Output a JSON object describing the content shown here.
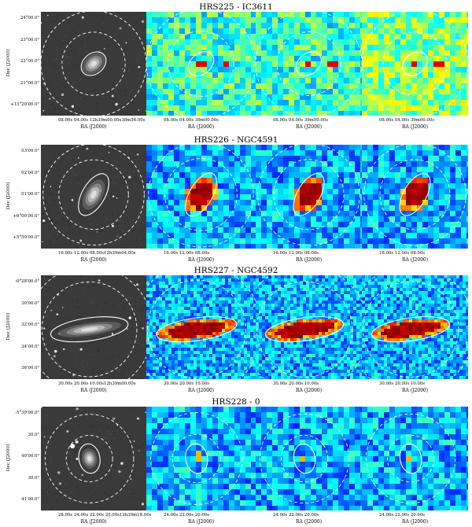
{
  "figure": {
    "rows": [
      {
        "title": "HRS225 - IC3611",
        "y_ticks": [
          "24°00.0\"",
          "23°00.0\"",
          "22°00.0\"",
          "21°00.0\"",
          "+13°20'00.0\""
        ],
        "y_label": "Dec (J2000)",
        "panels": [
          {
            "kind": "optical",
            "x_ticks": "08.00s  04.00s 12h39m00.00s38m56.00s",
            "x_label": "RA (J2000)"
          },
          {
            "kind": "map",
            "x_ticks": "08.00s  04.00s 39m00.00s",
            "x_label": "RA (J2000)"
          },
          {
            "kind": "map",
            "x_ticks": "08.00s  04.00s 39m00.00s",
            "x_label": "RA (J2000)"
          },
          {
            "kind": "map",
            "x_ticks": "08.00s  04.00s 39m00.00s",
            "x_label": "RA (J2000)"
          }
        ]
      },
      {
        "title": "HRS226 - NGC4591",
        "y_ticks": [
          "03'00.0\"",
          "02'00.0\"",
          "01'00.0\"",
          "+6°00'00.0\"",
          "+5°59'00.0\""
        ],
        "y_label": "Dec (J2000)",
        "panels": [
          {
            "kind": "optical",
            "x_ticks": "16.00s  12.00s  08.00s12h39m04.00s",
            "x_label": "RA (J2000)"
          },
          {
            "kind": "map",
            "x_ticks": "16.00s  12.00s  08.00s",
            "x_label": "RA (J2000)"
          },
          {
            "kind": "map",
            "x_ticks": "16.00s  12.00s  08.00s",
            "x_label": "RA (J2000)"
          },
          {
            "kind": "map",
            "x_ticks": "16.00s  12.00s  08.00s",
            "x_label": "RA (J2000)"
          }
        ]
      },
      {
        "title": "HRS227 - NGC4592",
        "y_ticks": [
          "-0°28'00.0\"",
          "30'00.0\"",
          "32'00.0\"",
          "34'00.0\"",
          "36'00.0\""
        ],
        "y_label": "Dec (J2000)",
        "panels": [
          {
            "kind": "optical",
            "x_ticks": "30.00s  20.00s  10.00s12h39m00.00s",
            "x_label": "RA (J2000)"
          },
          {
            "kind": "map",
            "x_ticks": "30.00s  20.00s  10.00s",
            "x_label": "RA (J2000)"
          },
          {
            "kind": "map",
            "x_ticks": "30.00s  20.00s  10.00s",
            "x_label": "RA (J2000)"
          },
          {
            "kind": "map",
            "x_ticks": "30.00s  20.00s  10.00s",
            "x_label": "RA (J2000)"
          }
        ]
      },
      {
        "title": "HRS228 - 0",
        "y_ticks": [
          "-5°39'00.0\"",
          "30.0\"",
          "40'00.0\"",
          "30.0\"",
          "41'00.0\""
        ],
        "y_label": "Dec (J2000)",
        "panels": [
          {
            "kind": "optical",
            "x_ticks": "28.00s  24.00s  22.00s  20.00s12h39m18.00s",
            "x_label": "RA (J2000)"
          },
          {
            "kind": "map",
            "x_ticks": "24.00s  22.00s  20.00s",
            "x_label": "RA (J2000)"
          },
          {
            "kind": "map",
            "x_ticks": "24.00s  22.00s  20.00s",
            "x_label": "RA (J2000)"
          },
          {
            "kind": "map",
            "x_ticks": "24.00s  22.00s  20.00s",
            "x_label": "RA (J2000)"
          }
        ]
      }
    ],
    "colors": {
      "map_background": "#5fd2d8",
      "map_low": "#2f7de0",
      "map_high": "#8b0000",
      "map_mid": "#e8e838",
      "optical_background": "#3a3a3a",
      "aperture_stroke": "#ffffff"
    }
  }
}
